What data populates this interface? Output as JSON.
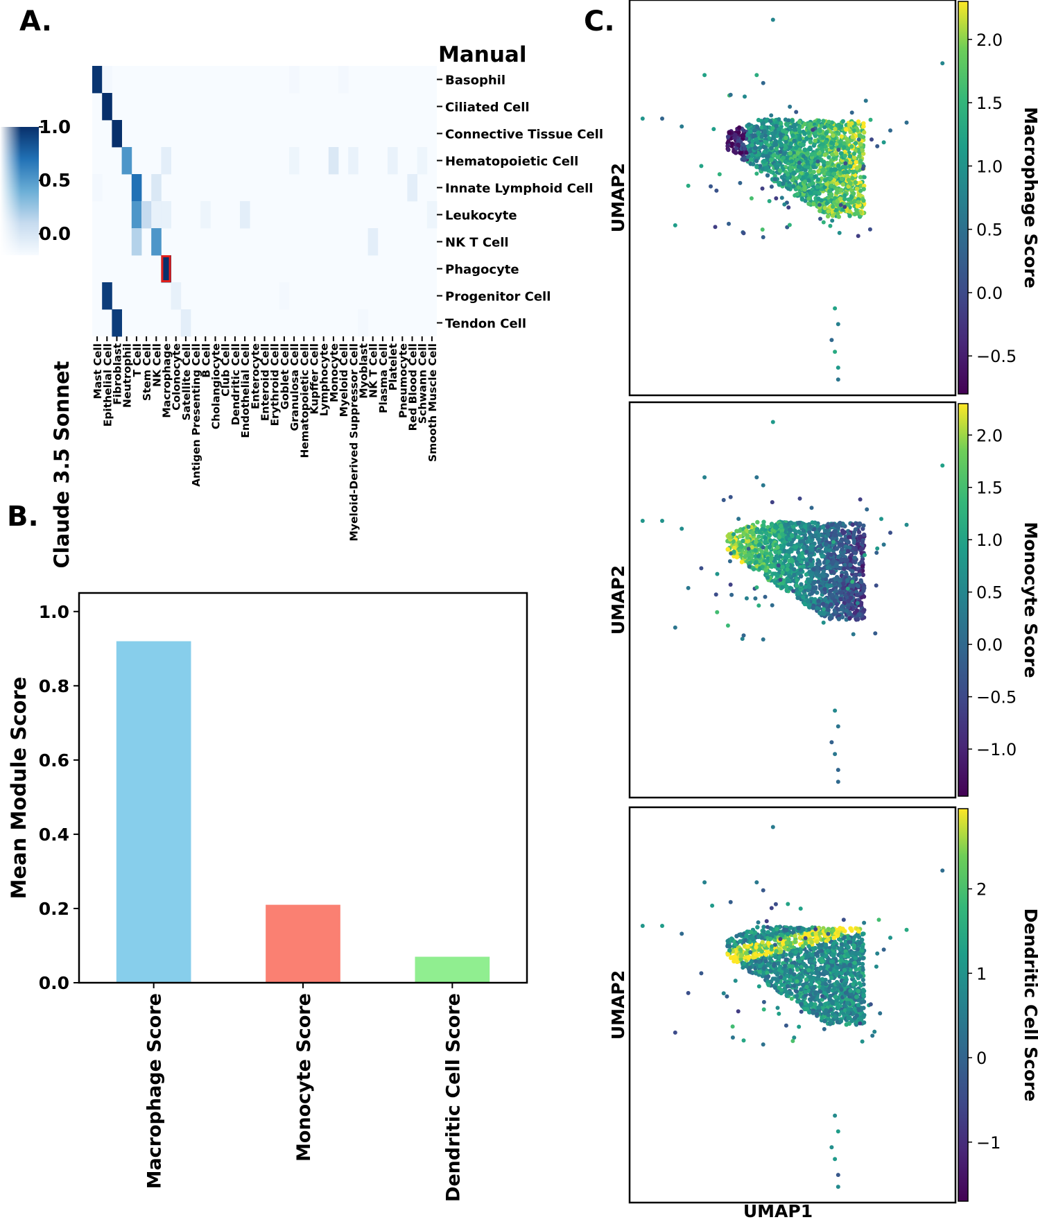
{
  "panels": {
    "a": "A.",
    "b": "B.",
    "c": "C."
  },
  "chart_data": [
    {
      "type": "heatmap",
      "panel": "A.",
      "title": "Manual",
      "ylabel": "Claude 3.5 Sonnet",
      "rows": [
        "Basophil",
        "Ciliated Cell",
        "Connective Tissue Cell",
        "Hematopoietic Cell",
        "Innate Lymphoid Cell",
        "Leukocyte",
        "NK T Cell",
        "Phagocyte",
        "Progenitor Cell",
        "Tendon Cell"
      ],
      "columns": [
        "Mast Cell",
        "Epithelial Cell",
        "Fibroblast",
        "Neutrophil",
        "T Cell",
        "Stem Cell",
        "NK Cell",
        "Macrophage",
        "Colonocyte",
        "Satellite Cell",
        "Antigen Presenting Cell",
        "B Cell",
        "Cholangiocyte",
        "Club Cell",
        "Dendritic Cell",
        "Endothelial Cell",
        "Enterocyte",
        "Enteroid Cell",
        "Erythroid Cell",
        "Goblet Cell",
        "Granulosa Cell",
        "Hematopoietic Cell",
        "Kupffer Cell",
        "Lymphocyte",
        "Monocyte",
        "Myeloid Cell",
        "Myeloid-Derived Suppressor Cell",
        "Myoblast",
        "NK T Cell",
        "Plasma Cell",
        "Platelet",
        "Pneumocyte",
        "Red Blood Cell",
        "Schwann Cell",
        "Smooth Muscle Cell"
      ],
      "values": [
        [
          0.98,
          0.02,
          0.0,
          0.0,
          0.0,
          0.0,
          0.0,
          0.0,
          0.0,
          0.0,
          0.0,
          0.0,
          0.0,
          0.0,
          0.0,
          0.0,
          0.0,
          0.0,
          0.0,
          0.0,
          0.02,
          0.0,
          0.0,
          0.0,
          0.0,
          0.02,
          0.0,
          0.0,
          0.0,
          0.0,
          0.0,
          0.0,
          0.0,
          0.0,
          0.0
        ],
        [
          0.0,
          1.0,
          0.0,
          0.0,
          0.0,
          0.0,
          0.0,
          0.0,
          0.0,
          0.0,
          0.0,
          0.0,
          0.0,
          0.0,
          0.0,
          0.0,
          0.0,
          0.0,
          0.0,
          0.0,
          0.0,
          0.0,
          0.0,
          0.0,
          0.0,
          0.0,
          0.0,
          0.0,
          0.0,
          0.0,
          0.0,
          0.0,
          0.0,
          0.0,
          0.0
        ],
        [
          0.0,
          0.0,
          1.0,
          0.0,
          0.0,
          0.0,
          0.0,
          0.0,
          0.0,
          0.0,
          0.0,
          0.0,
          0.0,
          0.0,
          0.0,
          0.0,
          0.0,
          0.0,
          0.0,
          0.0,
          0.0,
          0.0,
          0.0,
          0.0,
          0.0,
          0.0,
          0.0,
          0.0,
          0.0,
          0.0,
          0.0,
          0.0,
          0.0,
          0.0,
          0.0
        ],
        [
          0.0,
          0.0,
          0.0,
          0.6,
          0.0,
          0.0,
          0.0,
          0.1,
          0.0,
          0.0,
          0.0,
          0.0,
          0.0,
          0.0,
          0.0,
          0.0,
          0.0,
          0.0,
          0.0,
          0.0,
          0.05,
          0.0,
          0.0,
          0.0,
          0.15,
          0.0,
          0.07,
          0.0,
          0.0,
          0.0,
          0.07,
          0.0,
          0.0,
          0.05,
          0.0
        ],
        [
          0.02,
          0.0,
          0.0,
          0.0,
          0.75,
          0.0,
          0.15,
          0.0,
          0.0,
          0.0,
          0.0,
          0.0,
          0.0,
          0.0,
          0.0,
          0.0,
          0.0,
          0.0,
          0.0,
          0.0,
          0.0,
          0.0,
          0.0,
          0.0,
          0.0,
          0.0,
          0.0,
          0.0,
          0.0,
          0.0,
          0.0,
          0.0,
          0.1,
          0.0,
          0.0
        ],
        [
          0.0,
          0.0,
          0.0,
          0.0,
          0.6,
          0.25,
          0.08,
          0.08,
          0.0,
          0.0,
          0.0,
          0.05,
          0.0,
          0.0,
          0.0,
          0.1,
          0.0,
          0.0,
          0.0,
          0.0,
          0.0,
          0.0,
          0.0,
          0.0,
          0.0,
          0.0,
          0.0,
          0.0,
          0.0,
          0.0,
          0.0,
          0.0,
          0.0,
          0.0,
          0.05
        ],
        [
          0.0,
          0.0,
          0.0,
          0.0,
          0.3,
          0.0,
          0.6,
          0.0,
          0.0,
          0.0,
          0.0,
          0.0,
          0.0,
          0.0,
          0.0,
          0.0,
          0.0,
          0.0,
          0.0,
          0.0,
          0.0,
          0.0,
          0.0,
          0.0,
          0.0,
          0.0,
          0.0,
          0.0,
          0.1,
          0.0,
          0.0,
          0.0,
          0.0,
          0.0,
          0.0
        ],
        [
          0.0,
          0.0,
          0.0,
          0.0,
          0.0,
          0.0,
          0.0,
          1.0,
          0.0,
          0.0,
          0.0,
          0.0,
          0.0,
          0.0,
          0.0,
          0.0,
          0.0,
          0.0,
          0.0,
          0.0,
          0.0,
          0.0,
          0.0,
          0.0,
          0.0,
          0.0,
          0.0,
          0.0,
          0.0,
          0.0,
          0.0,
          0.0,
          0.0,
          0.0,
          0.0
        ],
        [
          0.0,
          0.95,
          0.0,
          0.0,
          0.0,
          0.0,
          0.0,
          0.0,
          0.08,
          0.0,
          0.0,
          0.0,
          0.0,
          0.0,
          0.0,
          0.0,
          0.0,
          0.0,
          0.0,
          0.02,
          0.0,
          0.0,
          0.0,
          0.0,
          0.0,
          0.0,
          0.0,
          0.0,
          0.0,
          0.0,
          0.0,
          0.0,
          0.0,
          0.0,
          0.0
        ],
        [
          0.0,
          0.0,
          0.95,
          0.0,
          0.0,
          0.0,
          0.0,
          0.0,
          0.0,
          0.1,
          0.0,
          0.0,
          0.0,
          0.0,
          0.0,
          0.0,
          0.0,
          0.0,
          0.0,
          0.0,
          0.0,
          0.0,
          0.0,
          0.0,
          0.0,
          0.0,
          0.0,
          0.02,
          0.0,
          0.0,
          0.0,
          0.0,
          0.0,
          0.0,
          0.0
        ]
      ],
      "highlight": {
        "row": "Phagocyte",
        "column": "Macrophage",
        "color": "#e0201c"
      },
      "colorbar": {
        "ticks": [
          "1.0",
          "0.5",
          "0.0"
        ],
        "range": [
          -0.2,
          1.0
        ],
        "low_color": "#f7fbff",
        "high_color": "#08306b"
      }
    },
    {
      "type": "bar",
      "panel": "B.",
      "categories": [
        "Macrophage Score",
        "Monocyte Score",
        "Dendritic Cell Score"
      ],
      "values": [
        0.92,
        0.21,
        0.07
      ],
      "colors": [
        "#87ceeb",
        "#fa8072",
        "#90ee90"
      ],
      "ylabel": "Mean Module Score",
      "ylim": [
        0,
        1.05
      ],
      "yticks": [
        "0.0",
        "0.2",
        "0.4",
        "0.6",
        "0.8",
        "1.0"
      ]
    },
    {
      "type": "scatter",
      "panel": "C.",
      "xlabel": "UMAP1",
      "ylabel": "UMAP2",
      "colormap": "viridis",
      "plots": [
        {
          "colorbar_label": "Macrophage Score",
          "range": [
            -0.8,
            2.3
          ],
          "ticks": [
            "2.0",
            "1.5",
            "1.0",
            "0.5",
            "0.0",
            "−0.5"
          ]
        },
        {
          "colorbar_label": "Monocyte Score",
          "range": [
            -1.45,
            2.3
          ],
          "ticks": [
            "2.0",
            "1.5",
            "1.0",
            "0.5",
            "0.0",
            "−0.5",
            "−1.0"
          ]
        },
        {
          "colorbar_label": "Dendritic Cell Score",
          "range": [
            -1.7,
            2.95
          ],
          "ticks": [
            "2",
            "1",
            "0",
            "−1"
          ]
        }
      ]
    }
  ]
}
